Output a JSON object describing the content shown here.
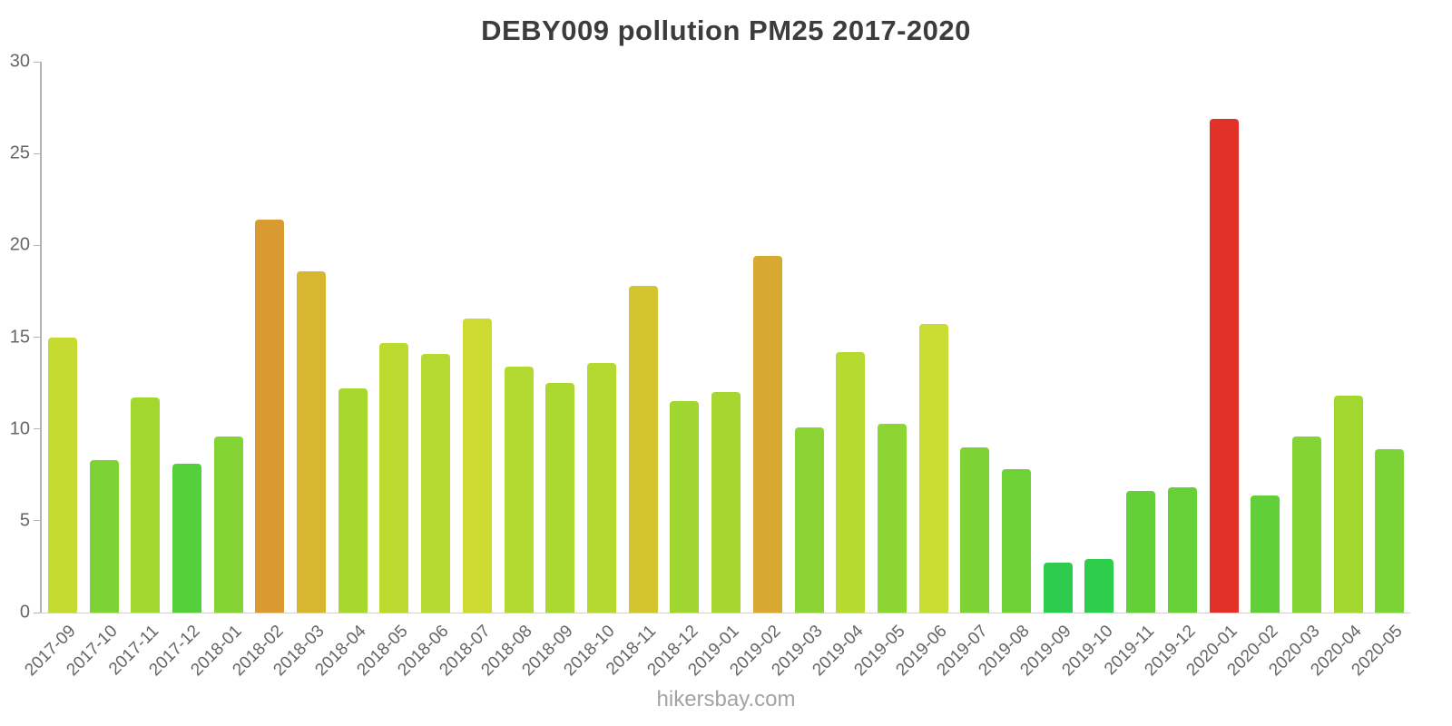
{
  "footer": "hikersbay.com",
  "axis_colors": {
    "axis_line": "#b3b3b3",
    "baseline": "#cfcfcf",
    "tick_text": "#666666",
    "title_text": "#3c3c3c",
    "watermark_text": "#a3a3a3"
  },
  "chart_data": {
    "type": "bar",
    "title": "DEBY009 pollution PM25 2017-2020",
    "xlabel": "",
    "ylabel": "",
    "ylim": [
      0,
      30
    ],
    "yticks": [
      0,
      5,
      10,
      15,
      20,
      25,
      30
    ],
    "grid": false,
    "legend": "none",
    "categories": [
      "2017-09",
      "2017-10",
      "2017-11",
      "2017-12",
      "2018-01",
      "2018-02",
      "2018-03",
      "2018-04",
      "2018-05",
      "2018-06",
      "2018-07",
      "2018-08",
      "2018-09",
      "2018-10",
      "2018-11",
      "2018-12",
      "2019-01",
      "2019-02",
      "2019-03",
      "2019-04",
      "2019-05",
      "2019-06",
      "2019-07",
      "2019-08",
      "2019-09",
      "2019-10",
      "2019-11",
      "2019-12",
      "2020-01",
      "2020-02",
      "2020-03",
      "2020-04",
      "2020-05"
    ],
    "values": [
      15.0,
      8.3,
      11.7,
      8.1,
      9.6,
      21.4,
      18.6,
      12.2,
      14.7,
      14.1,
      16.0,
      13.4,
      12.5,
      13.6,
      17.8,
      11.5,
      12.0,
      19.4,
      10.1,
      14.2,
      10.3,
      15.7,
      9.0,
      7.8,
      2.7,
      2.9,
      6.6,
      6.8,
      26.9,
      6.4,
      9.6,
      11.8,
      8.9
    ],
    "colors": [
      "#c6db31",
      "#7dd334",
      "#a2d730",
      "#55d03b",
      "#84d434",
      "#d99b31",
      "#d6b72f",
      "#a8d82f",
      "#bcdb30",
      "#b6da31",
      "#cdda2f",
      "#b2d930",
      "#aad830",
      "#b4d930",
      "#d4c52e",
      "#9fd630",
      "#a5d730",
      "#d8a930",
      "#8bd433",
      "#b7da30",
      "#8dd533",
      "#c9dc31",
      "#7ed334",
      "#6ed136",
      "#2ecc4e",
      "#2fcd4c",
      "#63d038",
      "#66d037",
      "#e23128",
      "#60cf38",
      "#84d434",
      "#a2d730",
      "#7cd335"
    ]
  }
}
